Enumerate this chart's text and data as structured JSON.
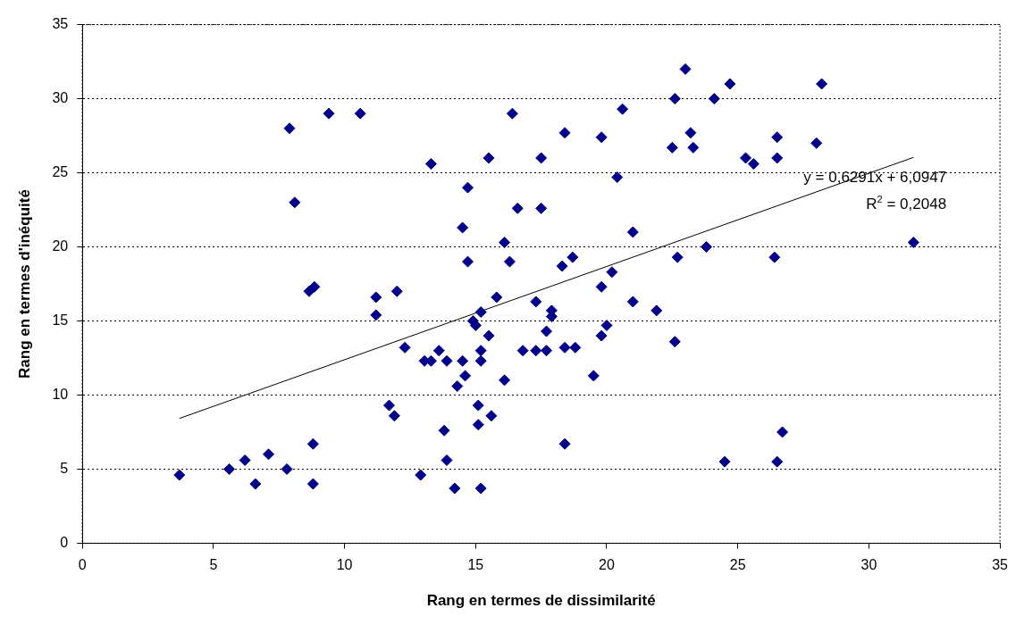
{
  "chart_data": {
    "type": "scatter",
    "xlabel": "Rang en termes de dissimilarité",
    "ylabel": "Rang en termes d'inéquité",
    "xlim": [
      0,
      35
    ],
    "xticks": [
      0,
      5,
      10,
      15,
      20,
      25,
      30,
      35
    ],
    "ylim": [
      0,
      35
    ],
    "yticks": [
      0,
      5,
      10,
      15,
      20,
      25,
      30,
      35
    ],
    "grid": "y",
    "legend": false,
    "marker": "diamond",
    "annotations": [
      "y = 0,6291x + 6,0947",
      "R$^{2}$ = 0,2048"
    ],
    "series": [
      {
        "color": "#00008b",
        "x": [
          3.7,
          5.6,
          6.2,
          6.6,
          7.1,
          7.8,
          7.9,
          8.1,
          8.65,
          8.85,
          8.8,
          8.8,
          9.4,
          10.6,
          11.2,
          11.2,
          11.7,
          11.9,
          12.0,
          12.3,
          12.9,
          13.05,
          13.3,
          13.3,
          13.6,
          13.8,
          13.9,
          13.9,
          14.2,
          14.3,
          14.5,
          14.5,
          14.6,
          14.7,
          14.7,
          14.9,
          15.0,
          15.1,
          15.1,
          15.2,
          15.2,
          15.2,
          15.2,
          15.5,
          15.5,
          15.6,
          15.8,
          16.1,
          16.1,
          16.3,
          16.4,
          16.6,
          16.8,
          17.3,
          17.3,
          17.5,
          17.5,
          17.7,
          17.7,
          17.9,
          17.9,
          18.3,
          18.4,
          18.4,
          18.4,
          18.7,
          18.8,
          19.5,
          19.8,
          19.8,
          19.8,
          20.0,
          20.2,
          20.4,
          20.6,
          21.0,
          21.0,
          21.9,
          22.5,
          22.6,
          22.6,
          22.7,
          23.0,
          23.2,
          23.3,
          23.8,
          24.1,
          24.5,
          24.7,
          25.3,
          25.6,
          26.4,
          26.5,
          26.5,
          26.5,
          26.7,
          28.0,
          28.2,
          31.7
        ],
        "values": [
          4.6,
          5.0,
          5.6,
          4.0,
          6.0,
          5.0,
          28.0,
          23.0,
          17.0,
          17.3,
          6.7,
          4.0,
          29.0,
          29.0,
          16.6,
          15.4,
          9.3,
          8.6,
          17.0,
          13.2,
          4.6,
          12.3,
          25.6,
          12.3,
          13.0,
          7.6,
          12.3,
          5.6,
          3.7,
          10.6,
          21.3,
          12.3,
          11.3,
          19.0,
          24.0,
          15.0,
          14.7,
          8.0,
          9.3,
          13.0,
          12.3,
          15.6,
          3.7,
          26.0,
          14.0,
          8.6,
          16.6,
          20.3,
          11.0,
          19.0,
          29.0,
          22.6,
          13.0,
          16.3,
          13.0,
          26.0,
          22.6,
          13.0,
          14.3,
          15.3,
          15.7,
          18.7,
          13.2,
          27.7,
          6.7,
          19.3,
          13.2,
          11.3,
          27.4,
          17.3,
          14.0,
          14.7,
          18.3,
          24.7,
          29.3,
          21.0,
          16.3,
          15.7,
          26.7,
          30.0,
          13.6,
          19.3,
          32.0,
          27.7,
          26.7,
          20.0,
          30.0,
          5.5,
          31.0,
          26.0,
          25.6,
          19.3,
          27.4,
          26.0,
          5.5,
          7.5,
          27.0,
          31.0,
          20.3
        ]
      },
      {
        "type": "line",
        "color": "#000000",
        "marker": "none",
        "x": [
          3.7,
          31.7
        ],
        "values": [
          8.42,
          26.04
        ]
      }
    ]
  }
}
